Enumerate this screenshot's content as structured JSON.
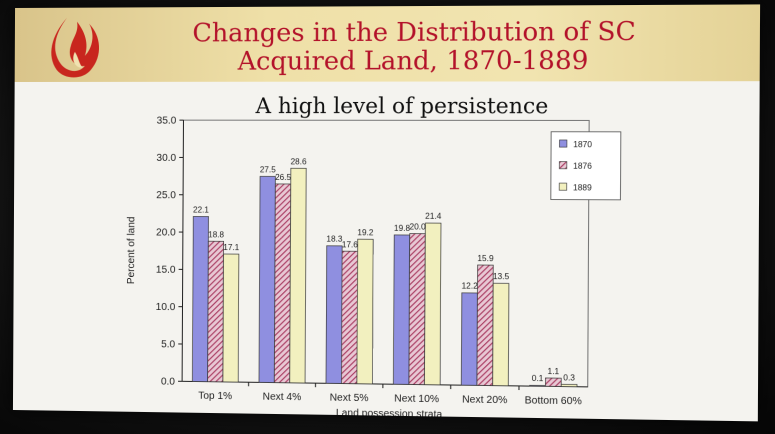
{
  "slide": {
    "title_line1": "Changes in the Distribution of SC",
    "title_line2": "Acquired Land, 1870-1889",
    "subtitle": "A high level of  persistence"
  },
  "colors": {
    "title": "#b3122a",
    "banner": "#efe0a8",
    "s1870": "#8f8fe0",
    "s1876": "#b04a6a",
    "s1889": "#f2f0bf"
  },
  "chart_data": {
    "type": "bar",
    "title": "A high level of  persistence",
    "xlabel": "Land possession strata",
    "ylabel": "Percent of land",
    "ylim": [
      0,
      35
    ],
    "yticks": [
      "0.0",
      "5.0",
      "10.0",
      "15.0",
      "20.0",
      "25.0",
      "30.0",
      "35.0"
    ],
    "categories": [
      "Top 1%",
      "Next 4%",
      "Next 5%",
      "Next 10%",
      "Next 20%",
      "Bottom 60%"
    ],
    "series": [
      {
        "name": "1870",
        "values": [
          22.1,
          27.5,
          18.3,
          19.8,
          12.2,
          0.1
        ],
        "labels": [
          "22.1",
          "27.5",
          "18.3",
          "19.8",
          "12.2",
          "0.1"
        ]
      },
      {
        "name": "1876",
        "values": [
          18.8,
          26.5,
          17.6,
          20.0,
          15.9,
          1.1
        ],
        "labels": [
          "18.8",
          "26.5",
          "17.6",
          "20.0",
          "15.9",
          "1.1"
        ]
      },
      {
        "name": "1889",
        "values": [
          17.1,
          28.6,
          19.2,
          21.4,
          13.5,
          0.3
        ],
        "labels": [
          "17.1",
          "28.6",
          "19.2",
          "21.4",
          "13.5",
          "0.3"
        ]
      }
    ],
    "legend": "top-right",
    "grid": false
  }
}
